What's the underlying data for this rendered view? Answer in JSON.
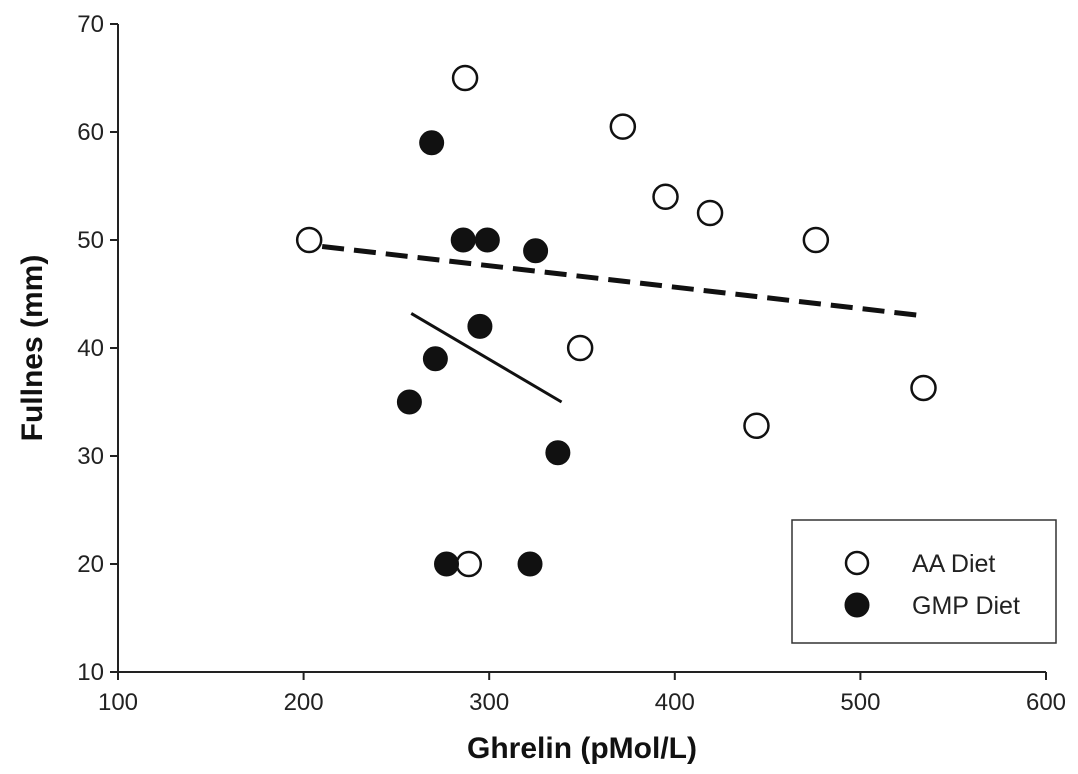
{
  "chart_data": {
    "type": "scatter",
    "xlabel": "Ghrelin (pMol/L)",
    "ylabel": "Fullnes (mm)",
    "xlim": [
      100,
      600
    ],
    "ylim": [
      10,
      70
    ],
    "xticks": [
      100,
      200,
      300,
      400,
      500,
      600
    ],
    "yticks": [
      10,
      20,
      30,
      40,
      50,
      60,
      70
    ],
    "grid": false,
    "legend_position": "bottom-right",
    "series": [
      {
        "name": "AA Diet",
        "marker": "open-circle",
        "points": [
          [
            203,
            50
          ],
          [
            287,
            65
          ],
          [
            372,
            60.5
          ],
          [
            395,
            54
          ],
          [
            419,
            52.5
          ],
          [
            476,
            50
          ],
          [
            349,
            40
          ],
          [
            534,
            36.3
          ],
          [
            444,
            32.8
          ],
          [
            289,
            20
          ]
        ],
        "trendline": {
          "style": "dashed",
          "x": [
            210,
            533
          ],
          "y": [
            49.4,
            43
          ]
        }
      },
      {
        "name": "GMP Diet",
        "marker": "filled-circle",
        "points": [
          [
            269,
            59
          ],
          [
            286,
            50
          ],
          [
            299,
            50
          ],
          [
            325,
            49
          ],
          [
            295,
            42
          ],
          [
            271,
            39
          ],
          [
            257,
            35
          ],
          [
            337,
            30.3
          ],
          [
            277,
            20
          ],
          [
            322,
            20
          ]
        ],
        "trendline": {
          "style": "solid",
          "x": [
            258,
            339
          ],
          "y": [
            43.2,
            35
          ]
        }
      }
    ]
  }
}
